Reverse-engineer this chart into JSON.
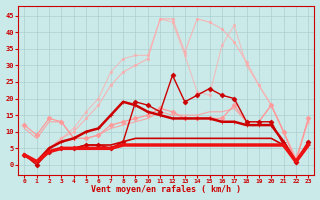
{
  "xlabel": "Vent moyen/en rafales ( km/h )",
  "xlim": [
    -0.5,
    23.5
  ],
  "ylim": [
    -3,
    48
  ],
  "yticks": [
    0,
    5,
    10,
    15,
    20,
    25,
    30,
    35,
    40,
    45
  ],
  "xticks": [
    0,
    1,
    2,
    3,
    4,
    5,
    6,
    7,
    8,
    9,
    10,
    11,
    12,
    13,
    14,
    15,
    16,
    17,
    18,
    19,
    20,
    21,
    22,
    23
  ],
  "bg_color": "#caeaea",
  "grid_color": "#aacccc",
  "lines": [
    {
      "x": [
        0,
        1,
        2,
        3,
        4,
        5,
        6,
        7,
        8,
        9,
        10,
        11,
        12,
        13,
        14,
        15,
        16,
        17,
        18,
        19,
        20,
        21,
        22,
        23
      ],
      "y": [
        3,
        1,
        5,
        8,
        10,
        14,
        18,
        24,
        28,
        30,
        32,
        44,
        44,
        34,
        44,
        43,
        41,
        37,
        31,
        24,
        18,
        10,
        2,
        13
      ],
      "color": "#ffaaaa",
      "lw": 0.8,
      "marker": "s",
      "ms": 2,
      "alpha": 0.85
    },
    {
      "x": [
        0,
        1,
        2,
        3,
        4,
        5,
        6,
        7,
        8,
        9,
        10,
        11,
        12,
        13,
        14,
        15,
        16,
        17,
        18,
        19,
        20,
        21,
        22,
        23
      ],
      "y": [
        3,
        1,
        5,
        8,
        11,
        16,
        20,
        28,
        32,
        33,
        33,
        44,
        43,
        33,
        22,
        21,
        36,
        42,
        30,
        24,
        18,
        10,
        2,
        7
      ],
      "color": "#ffaaaa",
      "lw": 0.8,
      "marker": "s",
      "ms": 2,
      "alpha": 0.7
    },
    {
      "x": [
        0,
        1,
        2,
        3,
        4,
        5,
        6,
        7,
        8,
        9,
        10,
        11,
        12,
        13,
        14,
        15,
        16,
        17,
        18,
        19,
        20,
        21,
        22,
        23
      ],
      "y": [
        12,
        9,
        14,
        13,
        8,
        8,
        9,
        12,
        13,
        14,
        15,
        17,
        16,
        14,
        14,
        14,
        14,
        18,
        13,
        13,
        18,
        10,
        1,
        14
      ],
      "color": "#ff9999",
      "lw": 0.9,
      "marker": "D",
      "ms": 2.5,
      "alpha": 1.0
    },
    {
      "x": [
        0,
        1,
        2,
        3,
        4,
        5,
        6,
        7,
        8,
        9,
        10,
        11,
        12,
        13,
        14,
        15,
        16,
        17,
        18,
        19,
        20,
        21,
        22,
        23
      ],
      "y": [
        11,
        8,
        13,
        13,
        8,
        8,
        9,
        11,
        12,
        13,
        14,
        16,
        15,
        15,
        15,
        16,
        16,
        17,
        13,
        13,
        18,
        10,
        1,
        14
      ],
      "color": "#ff9999",
      "lw": 0.8,
      "marker": null,
      "ms": 0,
      "alpha": 0.85
    },
    {
      "x": [
        0,
        1,
        2,
        3,
        4,
        5,
        6,
        7,
        8,
        9,
        10,
        11,
        12,
        13,
        14,
        15,
        16,
        17,
        18,
        19,
        20,
        21,
        22,
        23
      ],
      "y": [
        3,
        0,
        4,
        5,
        5,
        6,
        6,
        5,
        7,
        19,
        18,
        16,
        27,
        19,
        21,
        23,
        21,
        20,
        13,
        13,
        13,
        6,
        1,
        7
      ],
      "color": "#cc0000",
      "lw": 1.0,
      "marker": "D",
      "ms": 2.5,
      "alpha": 1.0
    },
    {
      "x": [
        0,
        1,
        2,
        3,
        4,
        5,
        6,
        7,
        8,
        9,
        10,
        11,
        12,
        13,
        14,
        15,
        16,
        17,
        18,
        19,
        20,
        21,
        22,
        23
      ],
      "y": [
        3,
        1,
        5,
        7,
        8,
        10,
        11,
        15,
        19,
        18,
        16,
        15,
        14,
        14,
        14,
        14,
        13,
        13,
        12,
        12,
        12,
        7,
        1,
        6
      ],
      "color": "#cc0000",
      "lw": 1.8,
      "marker": "+",
      "ms": 3.5,
      "alpha": 1.0
    },
    {
      "x": [
        0,
        1,
        2,
        3,
        4,
        5,
        6,
        7,
        8,
        9,
        10,
        11,
        12,
        13,
        14,
        15,
        16,
        17,
        18,
        19,
        20,
        21,
        22,
        23
      ],
      "y": [
        3,
        1,
        4,
        5,
        5,
        6,
        6,
        6,
        7,
        8,
        8,
        8,
        8,
        8,
        8,
        8,
        8,
        8,
        8,
        8,
        8,
        6,
        1,
        6
      ],
      "color": "#cc0000",
      "lw": 1.2,
      "marker": null,
      "ms": 0,
      "alpha": 1.0
    },
    {
      "x": [
        0,
        1,
        2,
        3,
        4,
        5,
        6,
        7,
        8,
        9,
        10,
        11,
        12,
        13,
        14,
        15,
        16,
        17,
        18,
        19,
        20,
        21,
        22,
        23
      ],
      "y": [
        3,
        1,
        4,
        5,
        5,
        5,
        5,
        5,
        6,
        6,
        6,
        6,
        6,
        6,
        6,
        6,
        6,
        6,
        6,
        6,
        6,
        6,
        1,
        6
      ],
      "color": "#ee1111",
      "lw": 2.5,
      "marker": null,
      "ms": 0,
      "alpha": 1.0
    }
  ]
}
